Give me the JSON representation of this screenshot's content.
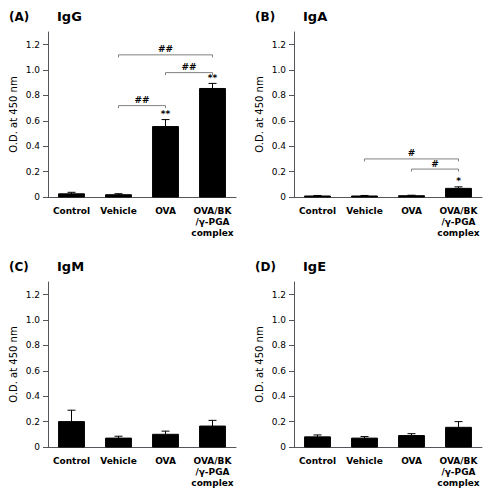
{
  "chart_data": [
    {
      "type": "bar",
      "title": "IgG",
      "panel_label": "(A)",
      "categories": [
        "Control",
        "Vehicle",
        "OVA",
        "OVA/BK\n/γ-PGA\ncomplex"
      ],
      "values": [
        0.025,
        0.018,
        0.555,
        0.855
      ],
      "errors": [
        0.012,
        0.008,
        0.055,
        0.04
      ],
      "color": "#000000",
      "ylabel": "O.D. at 450 nm",
      "ylim": [
        0,
        1.3
      ],
      "yticks": [
        0,
        0.2,
        0.4,
        0.6,
        0.8,
        {
          "value": 1.0,
          "label": "1.0"
        },
        1.2
      ],
      "grid": false,
      "star_labels": [
        null,
        null,
        "**",
        "**"
      ],
      "brackets": [
        {
          "from": "Vehicle",
          "to": "OVA/BK\n/γ-PGA\ncomplex",
          "y": 1.12,
          "label": "##"
        },
        {
          "from": "Vehicle",
          "to": "OVA",
          "y": 0.72,
          "label": "##"
        },
        {
          "from": "OVA",
          "to": "OVA/BK\n/γ-PGA\ncomplex",
          "y": 0.98,
          "label": "##"
        }
      ]
    },
    {
      "type": "bar",
      "title": "IgA",
      "panel_label": "(B)",
      "categories": [
        "Control",
        "Vehicle",
        "OVA",
        "OVA/BK\n/γ-PGA\ncomplex"
      ],
      "values": [
        0.008,
        0.008,
        0.01,
        0.068
      ],
      "errors": [
        0.004,
        0.004,
        0.004,
        0.012
      ],
      "color": "#000000",
      "ylabel": "O.D. at 450 nm",
      "ylim": [
        0,
        1.3
      ],
      "yticks": [
        0,
        0.2,
        0.4,
        0.6,
        0.8,
        {
          "value": 1.0,
          "label": "1.0"
        },
        1.2
      ],
      "grid": false,
      "star_labels": [
        null,
        null,
        null,
        "*"
      ],
      "brackets": [
        {
          "from": "Vehicle",
          "to": "OVA/BK\n/γ-PGA\ncomplex",
          "y": 0.3,
          "label": "#"
        },
        {
          "from": "OVA",
          "to": "OVA/BK\n/γ-PGA\ncomplex",
          "y": 0.22,
          "label": "#"
        }
      ]
    },
    {
      "type": "bar",
      "title": "IgM",
      "panel_label": "(C)",
      "categories": [
        "Control",
        "Vehicle",
        "OVA",
        "OVA/BK\n/γ-PGA\ncomplex"
      ],
      "values": [
        0.2,
        0.07,
        0.1,
        0.165
      ],
      "errors": [
        0.09,
        0.015,
        0.025,
        0.045
      ],
      "color": "#000000",
      "ylabel": "O.D. at 450 nm",
      "ylim": [
        0,
        1.3
      ],
      "yticks": [
        0,
        0.2,
        0.4,
        0.6,
        0.8,
        {
          "value": 1.0,
          "label": "1.0"
        },
        1.2
      ],
      "grid": false,
      "star_labels": [
        null,
        null,
        null,
        null
      ],
      "brackets": []
    },
    {
      "type": "bar",
      "title": "IgE",
      "panel_label": "(D)",
      "categories": [
        "Control",
        "Vehicle",
        "OVA",
        "OVA/BK\n/γ-PGA\ncomplex"
      ],
      "values": [
        0.08,
        0.07,
        0.09,
        0.155
      ],
      "errors": [
        0.015,
        0.012,
        0.015,
        0.045
      ],
      "color": "#000000",
      "ylabel": "O.D. at 450 nm",
      "ylim": [
        0,
        1.3
      ],
      "yticks": [
        0,
        0.2,
        0.4,
        0.6,
        0.8,
        {
          "value": 1.0,
          "label": "1.0"
        },
        1.2
      ],
      "grid": false,
      "star_labels": [
        null,
        null,
        null,
        null
      ],
      "brackets": []
    }
  ]
}
